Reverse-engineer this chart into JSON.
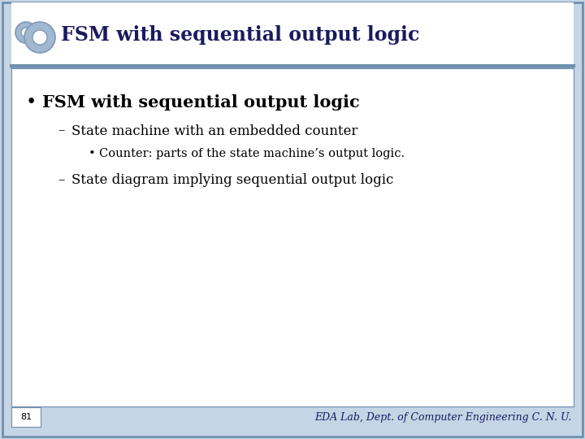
{
  "title": "FSM with sequential output logic",
  "slide_bg": "#c5d5e5",
  "header_bg": "#ffffff",
  "content_bg": "#ffffff",
  "header_border_color": "#7090b0",
  "title_color": "#1a1a5e",
  "title_fontsize": 17,
  "bullet1": "FSM with sequential output logic",
  "bullet1_fontsize": 15,
  "sub1": "State machine with an embedded counter",
  "sub1_fontsize": 12,
  "subsub1": "Counter: parts of the state machine’s output logic.",
  "subsub1_fontsize": 10.5,
  "sub2": "State diagram implying sequential output logic",
  "sub2_fontsize": 12,
  "footer_text": "EDA Lab, Dept. of Computer Engineering C. N. U.",
  "footer_color": "#1a1a5e",
  "footer_fontsize": 9,
  "page_number": "81",
  "page_number_fontsize": 8,
  "gear_color": "#a0b8d0",
  "gear_edge_color": "#8098b8"
}
